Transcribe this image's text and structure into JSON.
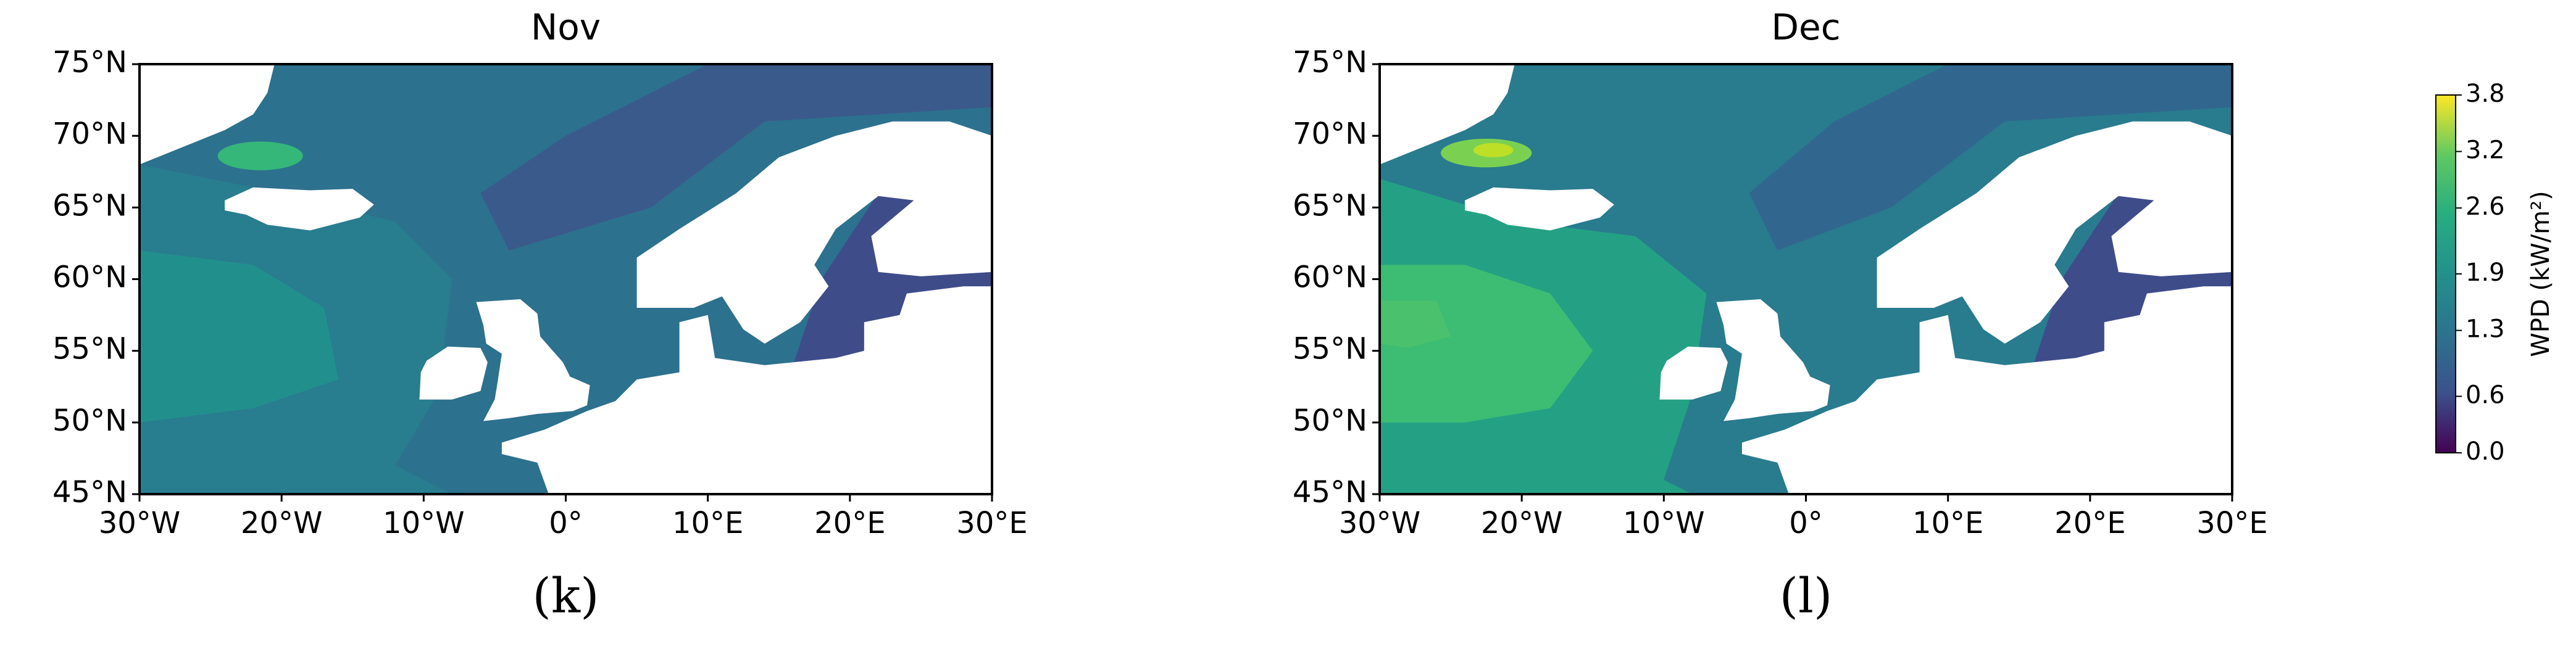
{
  "panels": [
    {
      "title": "Nov",
      "label": "(k)",
      "xlim": [
        -30,
        30
      ],
      "ylim": [
        45,
        75
      ],
      "xticks": [
        {
          "value": -30,
          "label": "30°W"
        },
        {
          "value": -20,
          "label": "20°W"
        },
        {
          "value": -10,
          "label": "10°W"
        },
        {
          "value": 0,
          "label": "0°"
        },
        {
          "value": 10,
          "label": "10°E"
        },
        {
          "value": 20,
          "label": "20°E"
        },
        {
          "value": 30,
          "label": "30°E"
        }
      ],
      "yticks": [
        {
          "value": 45,
          "label": "45°N"
        },
        {
          "value": 50,
          "label": "50°N"
        },
        {
          "value": 55,
          "label": "55°N"
        },
        {
          "value": 60,
          "label": "60°N"
        },
        {
          "value": 65,
          "label": "65°N"
        },
        {
          "value": 70,
          "label": "70°N"
        },
        {
          "value": 75,
          "label": "75°N"
        }
      ]
    },
    {
      "title": "Dec",
      "label": "(l)",
      "xlim": [
        -30,
        30
      ],
      "ylim": [
        45,
        75
      ],
      "xticks": [
        {
          "value": -30,
          "label": "30°W"
        },
        {
          "value": -20,
          "label": "20°W"
        },
        {
          "value": -10,
          "label": "10°W"
        },
        {
          "value": 0,
          "label": "0°"
        },
        {
          "value": 10,
          "label": "10°E"
        },
        {
          "value": 20,
          "label": "20°E"
        },
        {
          "value": 30,
          "label": "30°E"
        }
      ],
      "yticks": [
        {
          "value": 45,
          "label": "45°N"
        },
        {
          "value": 50,
          "label": "50°N"
        },
        {
          "value": 55,
          "label": "55°N"
        },
        {
          "value": 60,
          "label": "60°N"
        },
        {
          "value": 65,
          "label": "65°N"
        },
        {
          "value": 70,
          "label": "70°N"
        },
        {
          "value": 75,
          "label": "75°N"
        }
      ]
    }
  ],
  "colorbar": {
    "label": "WPD (kW/m²)",
    "lim": [
      0,
      3.8
    ],
    "ticks": [
      {
        "value": 0,
        "label": "0.0"
      },
      0.6,
      1.3,
      1.9,
      2.6,
      3.2,
      3.8
    ]
  }
}
